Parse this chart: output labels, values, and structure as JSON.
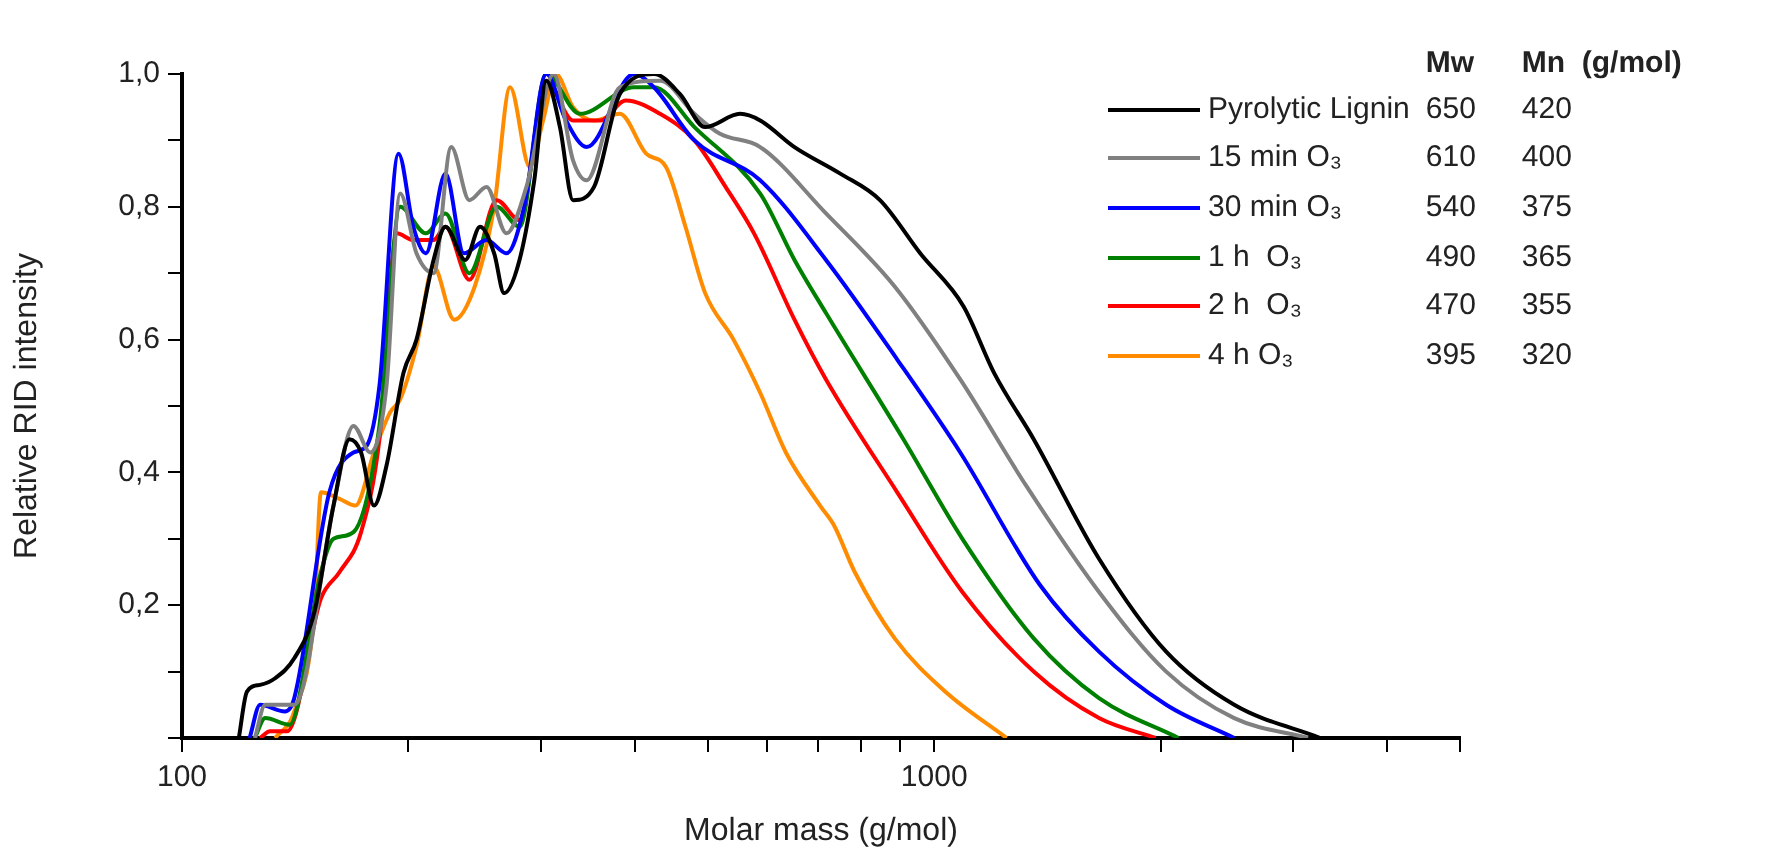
{
  "chart_data": {
    "type": "line",
    "xlabel": "Molar mass (g/mol)",
    "ylabel": "Relative RID intensity",
    "log": "x",
    "grid": false,
    "legend": "top right",
    "marker": "none",
    "line_style": "solid",
    "xlim": [
      100,
      5000
    ],
    "ylim": [
      0,
      1
    ],
    "xticks": [
      100,
      {
        "value": 200,
        "label": null
      },
      {
        "value": 300,
        "label": null
      },
      {
        "value": 400,
        "label": null
      },
      {
        "value": 500,
        "label": null
      },
      {
        "value": 600,
        "label": null
      },
      {
        "value": 700,
        "label": null
      },
      {
        "value": 800,
        "label": null
      },
      {
        "value": 900,
        "label": null
      },
      1000,
      {
        "value": 2000,
        "label": null
      },
      {
        "value": 3000,
        "label": null
      },
      {
        "value": 4000,
        "label": null
      },
      {
        "value": 5000,
        "label": null
      }
    ],
    "yticks": [
      {
        "value": 0,
        "label": null
      },
      {
        "value": 0.1,
        "label": null
      },
      {
        "value": 0.2,
        "label": "0,2"
      },
      {
        "value": 0.3,
        "label": null
      },
      {
        "value": 0.4,
        "label": "0,4"
      },
      {
        "value": 0.5,
        "label": null
      },
      {
        "value": 0.6,
        "label": "0,6"
      },
      {
        "value": 0.7,
        "label": null
      },
      {
        "value": 0.8,
        "label": "0,8"
      },
      {
        "value": 0.9,
        "label": null
      },
      {
        "value": 1,
        "label": "1,0"
      }
    ],
    "annotations": [
      "Mw",
      "Mn  (g/mol)",
      "650",
      "420",
      "610",
      "400",
      "540",
      "375",
      "490",
      "365",
      "470",
      "355",
      "395",
      "320"
    ],
    "series": [
      {
        "name": "Pyrolytic Lignin",
        "color": "#000000",
        "x": [
          119,
          122,
          127,
          133,
          141,
          150,
          159,
          167,
          173,
          180,
          187,
          197,
          205,
          216,
          224,
          238,
          249,
          260,
          268,
          281,
          294,
          305,
          318,
          331,
          353,
          382,
          424,
          459,
          496,
          552,
          587,
          652,
          750,
          847,
          958,
          1094,
          1201,
          1356,
          1656,
          2034,
          2505,
          3260
        ],
        "values": [
          0,
          0.07,
          0.08,
          0.09,
          0.12,
          0.19,
          0.35,
          0.45,
          0.43,
          0.35,
          0.41,
          0.55,
          0.6,
          0.72,
          0.77,
          0.72,
          0.77,
          0.73,
          0.67,
          0.72,
          0.84,
          0.99,
          0.92,
          0.81,
          0.83,
          0.97,
          1,
          0.97,
          0.92,
          0.94,
          0.93,
          0.89,
          0.85,
          0.81,
          0.73,
          0.65,
          0.55,
          0.45,
          0.27,
          0.13,
          0.05,
          0
        ]
      },
      {
        "name": "15 min O₃",
        "color": "#808080",
        "x": [
          125,
          129,
          141,
          159,
          169,
          178,
          187,
          195,
          205,
          216,
          228,
          241,
          254,
          270,
          287,
          312,
          331,
          345,
          382,
          432,
          480,
          519,
          587,
          718,
          886,
          1083,
          1325,
          1656,
          2034,
          2505,
          3140
        ],
        "values": [
          0,
          0.05,
          0.05,
          0.35,
          0.47,
          0.43,
          0.53,
          0.82,
          0.73,
          0.7,
          0.89,
          0.81,
          0.83,
          0.76,
          0.83,
          1,
          0.87,
          0.84,
          0.98,
          0.99,
          0.94,
          0.91,
          0.89,
          0.79,
          0.68,
          0.54,
          0.38,
          0.22,
          0.1,
          0.03,
          0
        ]
      },
      {
        "name": "30 min O₃",
        "color": "#0000ff",
        "x": [
          123,
          127,
          137,
          141,
          157,
          169,
          176,
          183,
          194,
          203,
          211,
          224,
          237,
          254,
          270,
          285,
          305,
          324,
          345,
          399,
          424,
          480,
          587,
          718,
          893,
          1083,
          1383,
          1656,
          2034,
          2505
        ],
        "values": [
          0,
          0.05,
          0.04,
          0.06,
          0.37,
          0.43,
          0.44,
          0.53,
          0.88,
          0.77,
          0.73,
          0.85,
          0.73,
          0.75,
          0.73,
          0.8,
          1,
          0.93,
          0.89,
          1,
          0.98,
          0.9,
          0.84,
          0.72,
          0.57,
          0.43,
          0.23,
          0.13,
          0.05,
          0
        ]
      },
      {
        "name": "1 h  O₃",
        "color": "#008000",
        "x": [
          125,
          129,
          139,
          153,
          159,
          169,
          183,
          195,
          211,
          224,
          241,
          262,
          281,
          305,
          338,
          399,
          424,
          480,
          587,
          652,
          718,
          910,
          1090,
          1356,
          1656,
          2112
        ],
        "values": [
          0,
          0.03,
          0.02,
          0.25,
          0.3,
          0.31,
          0.47,
          0.8,
          0.76,
          0.79,
          0.7,
          0.8,
          0.77,
          1,
          0.94,
          0.98,
          0.98,
          0.92,
          0.82,
          0.72,
          0.64,
          0.45,
          0.3,
          0.15,
          0.06,
          0
        ]
      },
      {
        "name": "2 h  O₃",
        "color": "#ff0000",
        "x": [
          127,
          131,
          138,
          153,
          162,
          173,
          183,
          193,
          203,
          216,
          224,
          241,
          262,
          281,
          305,
          331,
          360,
          389,
          432,
          480,
          528,
          576,
          652,
          718,
          893,
          1090,
          1356,
          1656,
          1970
        ],
        "values": [
          0,
          0.01,
          0.01,
          0.21,
          0.25,
          0.31,
          0.45,
          0.76,
          0.75,
          0.75,
          0.77,
          0.69,
          0.81,
          0.78,
          0.99,
          0.93,
          0.93,
          0.96,
          0.94,
          0.9,
          0.83,
          0.76,
          0.63,
          0.54,
          0.37,
          0.22,
          0.1,
          0.03,
          0
        ]
      },
      {
        "name": "4 h O₃",
        "color": "#ff8c00",
        "x": [
          133,
          141,
          150,
          153,
          162,
          170,
          180,
          189,
          195,
          205,
          216,
          230,
          245,
          260,
          273,
          290,
          302,
          314,
          331,
          353,
          382,
          414,
          440,
          467,
          496,
          541,
          587,
          635,
          705,
          736,
          784,
          886,
          1034,
          1248
        ],
        "values": [
          0,
          0.04,
          0.19,
          0.37,
          0.36,
          0.35,
          0.43,
          0.49,
          0.51,
          0.59,
          0.71,
          0.63,
          0.68,
          0.8,
          0.98,
          0.86,
          0.93,
          1,
          0.95,
          0.93,
          0.94,
          0.88,
          0.86,
          0.77,
          0.67,
          0.6,
          0.52,
          0.43,
          0.35,
          0.32,
          0.25,
          0.15,
          0.07,
          0
        ]
      }
    ]
  }
}
